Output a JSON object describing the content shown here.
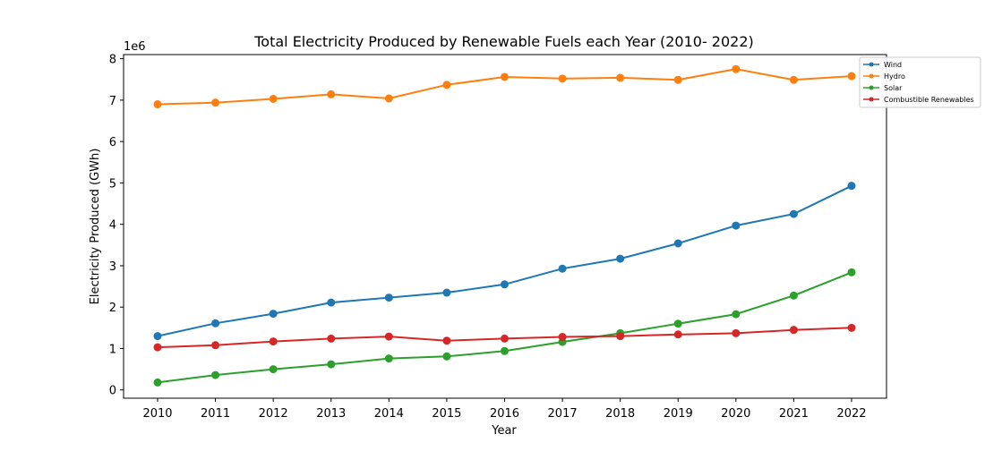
{
  "chart_data": {
    "type": "line",
    "title": "Total Electricity Produced by Renewable Fuels each Year (2010- 2022)",
    "xlabel": "Year",
    "ylabel": "Electricity Produced (GWh)",
    "y_offset_label": "1e6",
    "x": [
      2010,
      2011,
      2012,
      2013,
      2014,
      2015,
      2016,
      2017,
      2018,
      2019,
      2020,
      2021,
      2022
    ],
    "y_ticks": [
      "0",
      "1",
      "2",
      "3",
      "4",
      "5",
      "6",
      "7",
      "8"
    ],
    "ylim": [
      -0.2,
      8.1
    ],
    "y_scale": 1000000,
    "grid": false,
    "legend_position": "top-right",
    "series": [
      {
        "name": "Wind",
        "color": "#1f77b4",
        "values": [
          1.3,
          1.61,
          1.84,
          2.11,
          2.23,
          2.35,
          2.55,
          2.93,
          3.17,
          3.54,
          3.97,
          4.25,
          4.93
        ]
      },
      {
        "name": "Hydro",
        "color": "#ff7f0e",
        "values": [
          6.9,
          6.94,
          7.03,
          7.14,
          7.04,
          7.37,
          7.56,
          7.52,
          7.54,
          7.49,
          7.75,
          7.49,
          7.58
        ]
      },
      {
        "name": "Solar",
        "color": "#2ca02c",
        "values": [
          0.18,
          0.36,
          0.5,
          0.62,
          0.76,
          0.81,
          0.94,
          1.16,
          1.37,
          1.6,
          1.83,
          2.28,
          2.84
        ]
      },
      {
        "name": "Combustible Renewables",
        "color": "#d62728",
        "values": [
          1.03,
          1.08,
          1.17,
          1.24,
          1.29,
          1.19,
          1.24,
          1.28,
          1.3,
          1.34,
          1.37,
          1.45,
          1.5
        ]
      }
    ]
  }
}
